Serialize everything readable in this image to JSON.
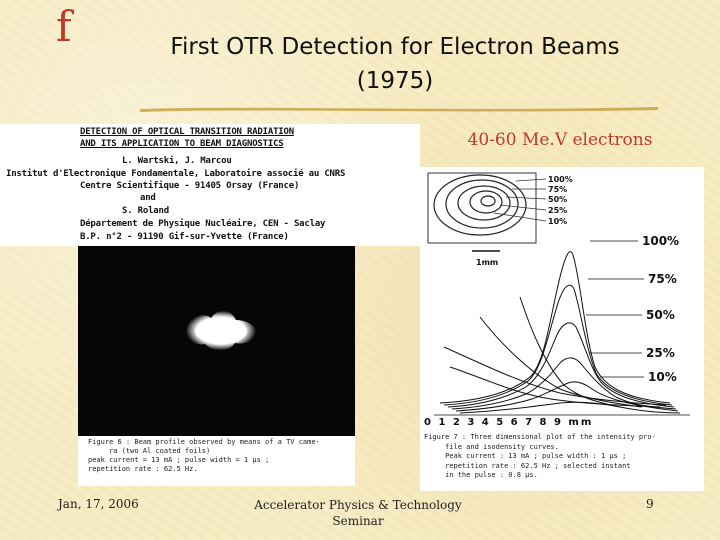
{
  "slide": {
    "logo": "f",
    "title": "First OTR Detection for Electron Beams (1975)",
    "caption_right": "40-60 Me.V electrons"
  },
  "paper": {
    "title_line1": "DETECTION OF OPTICAL TRANSITION RADIATION",
    "title_line2": "AND ITS APPLICATION TO BEAM DIAGNOSTICS",
    "authors": "L. Wartski, J. Marcou",
    "affil1": "Institut d'Electronique Fondamentale, Laboratoire associé au CNRS",
    "affil2": "Centre Scientifique - 91405 Orsay (France)",
    "and": "and",
    "author3": "S. Roland",
    "affil3": "Département de Physique Nucléaire, CEN - Saclay",
    "affil4": "B.P. n°2 - 91190 Gif-sur-Yvette (France)"
  },
  "figure6": {
    "caption": "Figure 6 : Beam profile observed by means of a TV came-\n     ra (two Al coated foils)\npeak current = 13 mA ; pulse width = 1 µs ;\nrepetition rate : 62.5 Hz."
  },
  "figure7": {
    "contour_labels": [
      "100%",
      "75%",
      "50%",
      "25%",
      "10%"
    ],
    "right_labels": [
      "100%",
      "75%",
      "50%",
      "25%",
      "10%"
    ],
    "scale_label": "1mm",
    "axis_label": "0 1 2 3 4 5 6 7 8 9 mm",
    "caption": "Figure 7 : Three dimensional plot of the intensity pro-\n     file and isodensity curves.\n     Peak current : 13 mA ; pulse width : 1 µs ;\n     repetition rate : 62.5 Hz ; selected instant\n     in the pulse : 0.8 µs."
  },
  "footer": {
    "date": "Jan, 17, 2006",
    "center": "Accelerator Physics & Technology Seminar",
    "page": "9"
  }
}
